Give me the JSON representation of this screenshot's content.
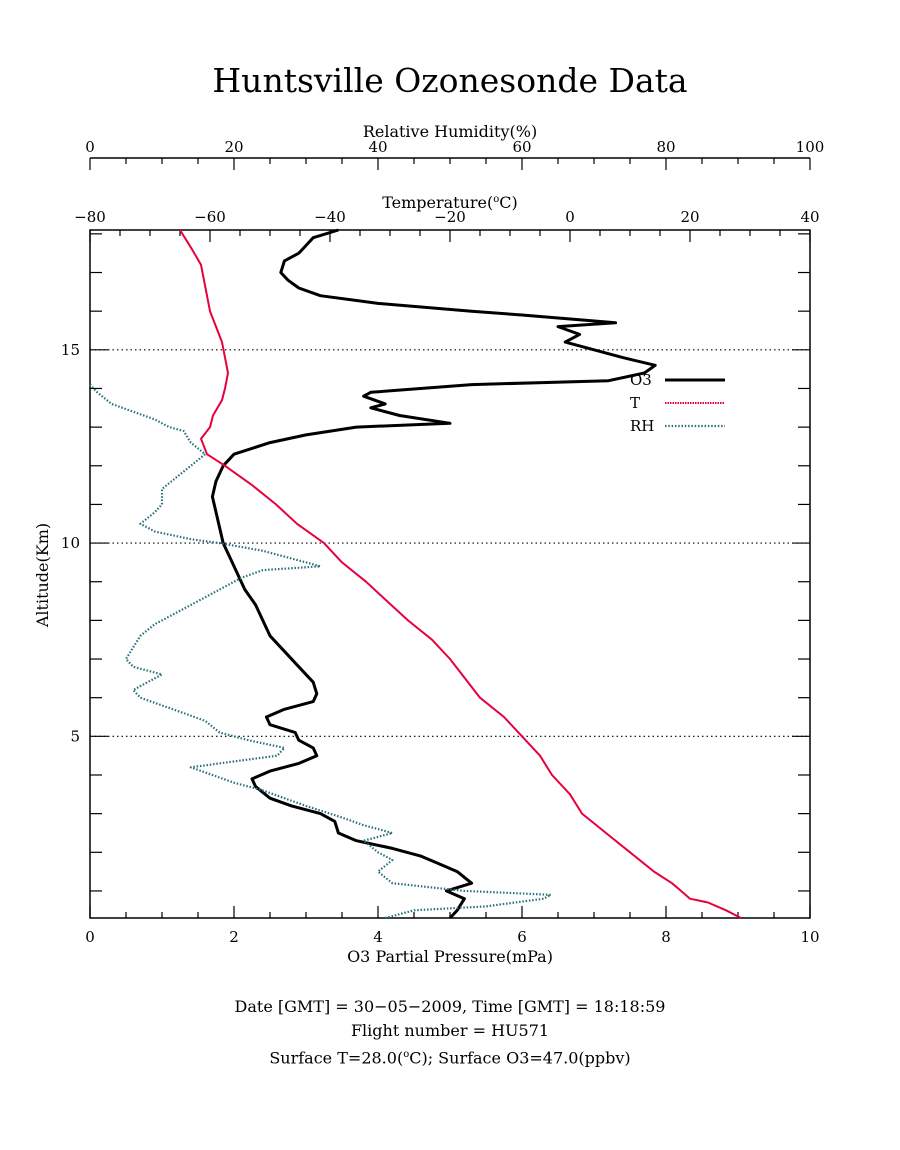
{
  "colors": {
    "o3": "#000000",
    "t": "#e8003c",
    "rh": "#2a6f7a",
    "frame": "#000000"
  },
  "chart_data": {
    "type": "line",
    "title": "Huntsville Ozonesonde Data",
    "y_axis": {
      "label": "Altitude(Km)",
      "range": [
        0.3,
        18.1
      ],
      "ticks": [
        "5",
        "10",
        "15"
      ]
    },
    "x_axis_o3": {
      "label": "O3 Partial Pressure(mPa)",
      "range": [
        0,
        10
      ],
      "ticks": [
        "0",
        "2",
        "4",
        "6",
        "8",
        "10"
      ]
    },
    "x_axis_t": {
      "label_prefix": "Temperature(",
      "label_sup": "o",
      "label_suffix": "C)",
      "range": [
        -80,
        40
      ],
      "ticks": [
        "−80",
        "−60",
        "−40",
        "−20",
        "0",
        "20",
        "40"
      ]
    },
    "x_axis_rh": {
      "label": "Relative Humidity(%)",
      "range": [
        0,
        100
      ],
      "ticks": [
        "0",
        "20",
        "40",
        "60",
        "80",
        "100"
      ]
    },
    "grid": "dotted horizontal at 5, 10, 15 km",
    "legend": {
      "placement": "top-right",
      "entries": [
        "O3",
        "T",
        "RH"
      ]
    },
    "series": [
      {
        "name": "O3",
        "x_unit": "mPa",
        "points": [
          [
            5.0,
            0.3
          ],
          [
            5.1,
            0.5
          ],
          [
            5.2,
            0.8
          ],
          [
            4.95,
            1.0
          ],
          [
            5.3,
            1.2
          ],
          [
            5.1,
            1.5
          ],
          [
            4.85,
            1.7
          ],
          [
            4.6,
            1.9
          ],
          [
            4.2,
            2.1
          ],
          [
            3.7,
            2.3
          ],
          [
            3.45,
            2.5
          ],
          [
            3.4,
            2.8
          ],
          [
            3.2,
            3.0
          ],
          [
            2.8,
            3.2
          ],
          [
            2.5,
            3.4
          ],
          [
            2.3,
            3.7
          ],
          [
            2.25,
            3.9
          ],
          [
            2.5,
            4.1
          ],
          [
            2.9,
            4.3
          ],
          [
            3.15,
            4.5
          ],
          [
            3.1,
            4.7
          ],
          [
            2.9,
            4.9
          ],
          [
            2.85,
            5.1
          ],
          [
            2.5,
            5.3
          ],
          [
            2.45,
            5.5
          ],
          [
            2.7,
            5.7
          ],
          [
            3.1,
            5.9
          ],
          [
            3.15,
            6.1
          ],
          [
            3.1,
            6.4
          ],
          [
            2.9,
            6.8
          ],
          [
            2.7,
            7.2
          ],
          [
            2.5,
            7.6
          ],
          [
            2.4,
            8.0
          ],
          [
            2.3,
            8.4
          ],
          [
            2.15,
            8.8
          ],
          [
            2.05,
            9.2
          ],
          [
            1.95,
            9.6
          ],
          [
            1.85,
            10.0
          ],
          [
            1.8,
            10.4
          ],
          [
            1.75,
            10.8
          ],
          [
            1.7,
            11.2
          ],
          [
            1.75,
            11.6
          ],
          [
            1.85,
            12.0
          ],
          [
            2.0,
            12.3
          ],
          [
            2.5,
            12.6
          ],
          [
            3.0,
            12.8
          ],
          [
            3.7,
            13.0
          ],
          [
            5.0,
            13.1
          ],
          [
            4.3,
            13.3
          ],
          [
            3.9,
            13.5
          ],
          [
            4.1,
            13.6
          ],
          [
            3.8,
            13.8
          ],
          [
            3.9,
            13.9
          ],
          [
            5.3,
            14.1
          ],
          [
            7.2,
            14.2
          ],
          [
            7.7,
            14.4
          ],
          [
            7.85,
            14.6
          ],
          [
            7.4,
            14.8
          ],
          [
            7.0,
            15.0
          ],
          [
            6.6,
            15.2
          ],
          [
            6.8,
            15.4
          ],
          [
            6.5,
            15.6
          ],
          [
            7.3,
            15.7
          ],
          [
            6.0,
            15.9
          ],
          [
            5.3,
            16.0
          ],
          [
            4.0,
            16.2
          ],
          [
            3.2,
            16.4
          ],
          [
            2.9,
            16.6
          ],
          [
            2.75,
            16.8
          ],
          [
            2.65,
            17.0
          ],
          [
            2.7,
            17.3
          ],
          [
            2.9,
            17.5
          ],
          [
            3.0,
            17.7
          ],
          [
            3.1,
            17.9
          ],
          [
            3.45,
            18.1
          ]
        ]
      },
      {
        "name": "T",
        "x_unit": "°C",
        "points": [
          [
            28.5,
            0.3
          ],
          [
            26.0,
            0.5
          ],
          [
            23.0,
            0.7
          ],
          [
            20.0,
            0.8
          ],
          [
            18.5,
            1.0
          ],
          [
            17.0,
            1.2
          ],
          [
            14.0,
            1.5
          ],
          [
            10.0,
            2.0
          ],
          [
            6.0,
            2.5
          ],
          [
            2.0,
            3.0
          ],
          [
            0.0,
            3.5
          ],
          [
            -3.0,
            4.0
          ],
          [
            -5.0,
            4.5
          ],
          [
            -8.0,
            5.0
          ],
          [
            -11.0,
            5.5
          ],
          [
            -15.0,
            6.0
          ],
          [
            -17.5,
            6.5
          ],
          [
            -20.0,
            7.0
          ],
          [
            -23.0,
            7.5
          ],
          [
            -27.0,
            8.0
          ],
          [
            -30.5,
            8.5
          ],
          [
            -34.0,
            9.0
          ],
          [
            -38.0,
            9.5
          ],
          [
            -41.0,
            10.0
          ],
          [
            -45.5,
            10.5
          ],
          [
            -49.0,
            11.0
          ],
          [
            -53.0,
            11.5
          ],
          [
            -57.5,
            12.0
          ],
          [
            -60.5,
            12.3
          ],
          [
            -61.5,
            12.7
          ],
          [
            -60.0,
            13.0
          ],
          [
            -59.5,
            13.3
          ],
          [
            -58.0,
            13.7
          ],
          [
            -57.5,
            14.0
          ],
          [
            -57.0,
            14.4
          ],
          [
            -57.5,
            14.8
          ],
          [
            -58.0,
            15.2
          ],
          [
            -59.0,
            15.6
          ],
          [
            -60.0,
            16.0
          ],
          [
            -60.5,
            16.4
          ],
          [
            -61.0,
            16.8
          ],
          [
            -61.5,
            17.2
          ],
          [
            -63.0,
            17.6
          ],
          [
            -65.0,
            18.1
          ]
        ]
      },
      {
        "name": "RH",
        "x_unit": "%",
        "points": [
          [
            41.0,
            0.3
          ],
          [
            45.0,
            0.5
          ],
          [
            55.0,
            0.6
          ],
          [
            63.0,
            0.8
          ],
          [
            64.0,
            0.9
          ],
          [
            52.0,
            1.0
          ],
          [
            47.0,
            1.1
          ],
          [
            42.0,
            1.2
          ],
          [
            40.0,
            1.5
          ],
          [
            42.0,
            1.8
          ],
          [
            40.0,
            2.0
          ],
          [
            38.0,
            2.3
          ],
          [
            42.0,
            2.5
          ],
          [
            38.0,
            2.7
          ],
          [
            35.0,
            2.9
          ],
          [
            30.0,
            3.2
          ],
          [
            27.0,
            3.4
          ],
          [
            24.0,
            3.6
          ],
          [
            20.0,
            3.8
          ],
          [
            17.0,
            4.0
          ],
          [
            14.0,
            4.2
          ],
          [
            18.0,
            4.3
          ],
          [
            22.0,
            4.4
          ],
          [
            26.0,
            4.5
          ],
          [
            27.0,
            4.7
          ],
          [
            22.0,
            4.9
          ],
          [
            18.0,
            5.1
          ],
          [
            16.0,
            5.4
          ],
          [
            13.0,
            5.6
          ],
          [
            10.0,
            5.8
          ],
          [
            7.0,
            6.0
          ],
          [
            6.0,
            6.2
          ],
          [
            8.0,
            6.4
          ],
          [
            10.0,
            6.6
          ],
          [
            6.0,
            6.8
          ],
          [
            5.0,
            7.0
          ],
          [
            6.0,
            7.3
          ],
          [
            7.0,
            7.6
          ],
          [
            9.0,
            7.9
          ],
          [
            12.0,
            8.2
          ],
          [
            15.0,
            8.5
          ],
          [
            18.0,
            8.8
          ],
          [
            21.0,
            9.1
          ],
          [
            24.0,
            9.3
          ],
          [
            32.0,
            9.4
          ],
          [
            28.0,
            9.6
          ],
          [
            24.0,
            9.8
          ],
          [
            18.0,
            10.0
          ],
          [
            14.0,
            10.1
          ],
          [
            9.0,
            10.3
          ],
          [
            7.0,
            10.5
          ],
          [
            9.0,
            10.8
          ],
          [
            10.0,
            11.0
          ],
          [
            10.0,
            11.4
          ],
          [
            12.0,
            11.7
          ],
          [
            14.0,
            12.0
          ],
          [
            16.0,
            12.3
          ],
          [
            14.0,
            12.6
          ],
          [
            13.0,
            12.9
          ],
          [
            11.0,
            13.0
          ],
          [
            9.0,
            13.2
          ],
          [
            6.0,
            13.4
          ],
          [
            3.0,
            13.6
          ],
          [
            1.0,
            13.9
          ],
          [
            0.0,
            14.1
          ]
        ]
      }
    ]
  },
  "footer": {
    "line1": "Date [GMT] = 30−05−2009,  Time [GMT] = 18:18:59",
    "line2": "Flight number = HU571",
    "line3_pre": "Surface T=28.0(",
    "line3_sup": "o",
    "line3_post": "C); Surface O3=47.0(ppbv)"
  }
}
